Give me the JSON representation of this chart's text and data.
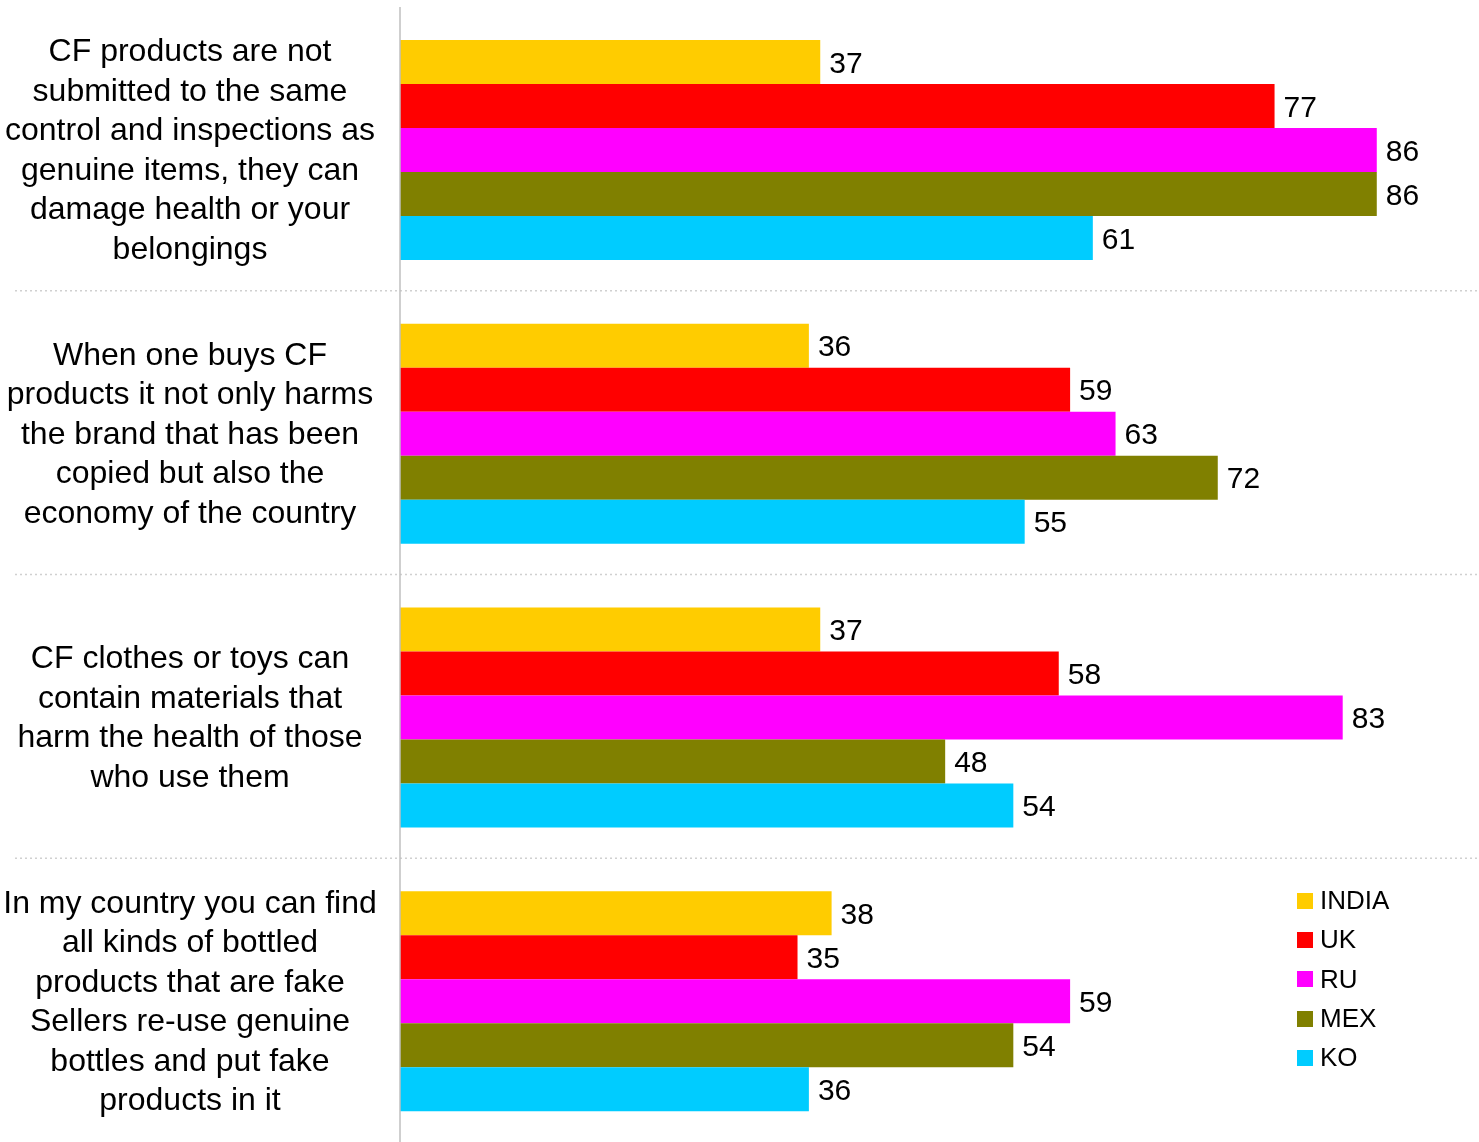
{
  "chart_data": {
    "type": "bar",
    "orientation": "horizontal",
    "categories": [
      "CF products are not submitted to the same control and inspections as genuine items, they can damage health or your belongings",
      "When one buys CF products it not only harms the brand that has been copied but also the economy of the country",
      "CF clothes or toys can contain materials that harm the health of those who use them",
      "In my country you can find all kinds of bottled products that are fake Sellers re-use genuine bottles and put fake products in it"
    ],
    "series": [
      {
        "name": "INDIA",
        "color": "#ffcc00",
        "values": [
          37,
          36,
          37,
          38
        ]
      },
      {
        "name": "UK",
        "color": "#ff0000",
        "values": [
          77,
          59,
          58,
          35
        ]
      },
      {
        "name": "RU",
        "color": "#ff00ff",
        "values": [
          86,
          63,
          83,
          59
        ]
      },
      {
        "name": "MEX",
        "color": "#808000",
        "values": [
          86,
          72,
          48,
          54
        ]
      },
      {
        "name": "KO",
        "color": "#00ccff",
        "values": [
          61,
          55,
          54,
          36
        ]
      }
    ],
    "xlim": [
      0,
      95
    ],
    "tick_labels": "y",
    "grid": "y",
    "legend": "bottom right",
    "data_labels": true
  }
}
